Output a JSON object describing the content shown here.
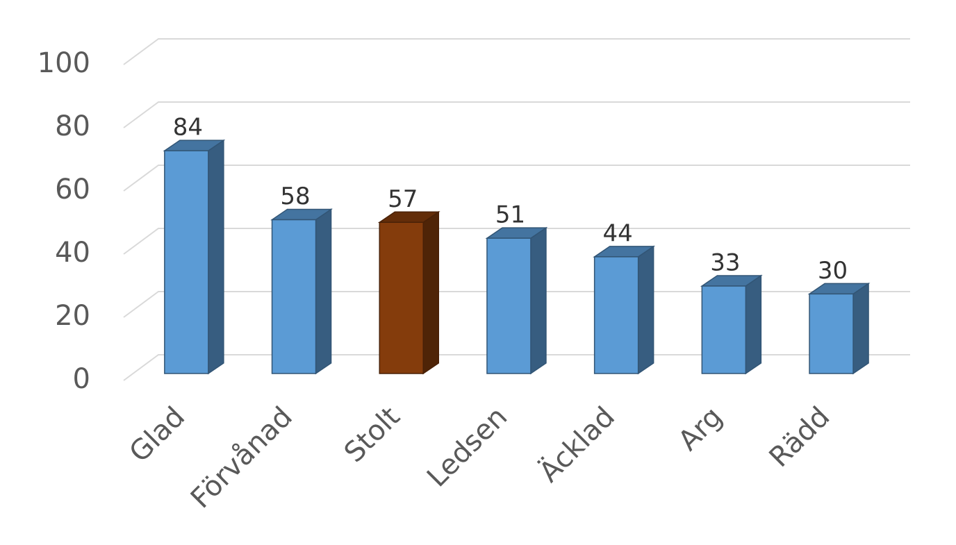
{
  "chart_data": {
    "type": "bar3d",
    "categories": [
      "Glad",
      "Förvånad",
      "Stolt",
      "Ledsen",
      "Äcklad",
      "Arg",
      "Rädd"
    ],
    "values": [
      84,
      58,
      57,
      51,
      44,
      33,
      30
    ],
    "colors": [
      "#5b9bd5",
      "#5b9bd5",
      "#843c0c",
      "#5b9bd5",
      "#5b9bd5",
      "#5b9bd5",
      "#5b9bd5"
    ],
    "ylim": [
      0,
      100
    ],
    "yticks": [
      0,
      20,
      40,
      60,
      80,
      100
    ],
    "grid": true
  }
}
